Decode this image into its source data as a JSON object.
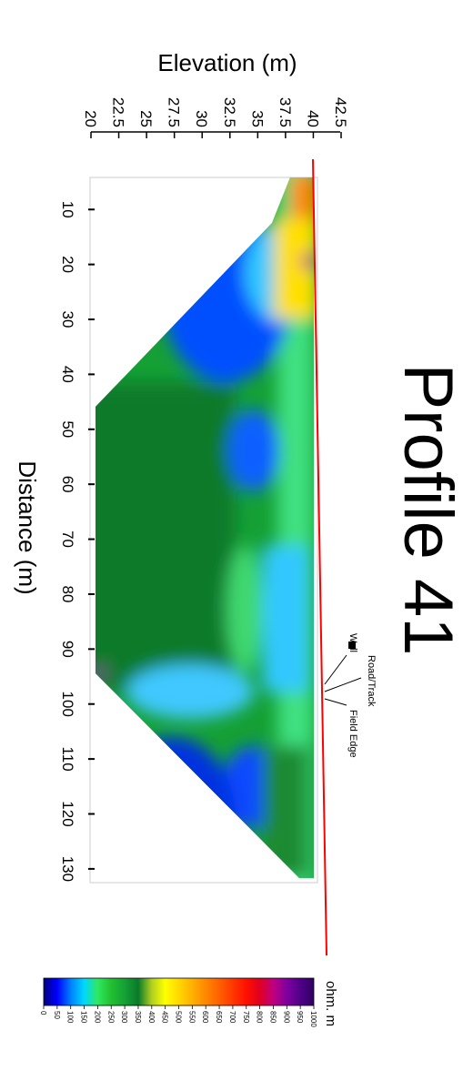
{
  "chart_data": {
    "type": "heatmap",
    "title": "Profile 41",
    "x_label": "Distance (m)",
    "y_label": "Elevation (m)",
    "xlim": [
      4,
      133
    ],
    "xticks": [
      10,
      20,
      30,
      40,
      50,
      60,
      70,
      80,
      90,
      100,
      110,
      120,
      130
    ],
    "ylim": [
      20,
      42.5
    ],
    "yticks": [
      20,
      22.5,
      25,
      27.5,
      30,
      32.5,
      35,
      37.5,
      40,
      42.5
    ],
    "colorbar": {
      "label": "ohm. m",
      "ticks": [
        0,
        50,
        100,
        150,
        200,
        250,
        300,
        350,
        400,
        450,
        500,
        550,
        600,
        650,
        700,
        750,
        800,
        850,
        900,
        950,
        1000
      ],
      "colors": [
        "#00007f",
        "#0000ff",
        "#0080ff",
        "#00d8ff",
        "#30e860",
        "#20c030",
        "#15a035",
        "#0a7a2a",
        "#b0d020",
        "#ffff00",
        "#ffd800",
        "#ffb000",
        "#ff8800",
        "#ff6000",
        "#ff3800",
        "#ff1000",
        "#e00020",
        "#c00080",
        "#8000a0",
        "#50008a",
        "#300060"
      ]
    },
    "annotations": [
      "Road/Track",
      "Wall",
      "Field Edge"
    ],
    "surface_color": "#ff0000"
  }
}
